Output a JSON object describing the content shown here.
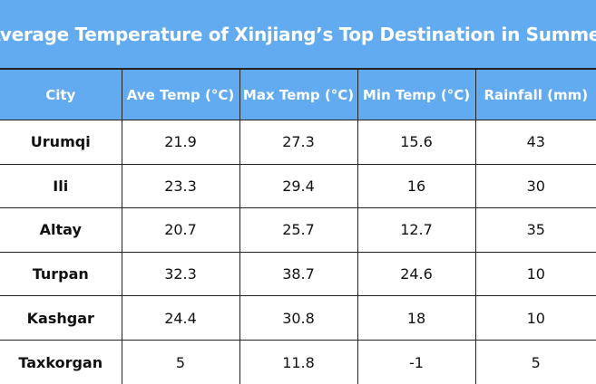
{
  "chart_data": {
    "type": "table",
    "title": "Average Temperature of Xinjiang’s Top Destination in Summer",
    "columns": [
      "City",
      "Ave Temp (°C)",
      "Max Temp (°C)",
      "Min Temp (°C)",
      "Rainfall (mm)"
    ],
    "rows": [
      [
        "Urumqi",
        "21.9",
        "27.3",
        "15.6",
        "43"
      ],
      [
        "Ili",
        "23.3",
        "29.4",
        "16",
        "30"
      ],
      [
        "Altay",
        "20.7",
        "25.7",
        "12.7",
        "35"
      ],
      [
        "Turpan",
        "32.3",
        "38.7",
        "24.6",
        "10"
      ],
      [
        "Kashgar",
        "24.4",
        "30.8",
        "18",
        "10"
      ],
      [
        "Taxkorgan",
        "5",
        "11.8",
        "-1",
        "5"
      ]
    ]
  },
  "colors": {
    "header_bg": "#62abf0",
    "header_text": "#ffffff",
    "border": "#222222"
  }
}
